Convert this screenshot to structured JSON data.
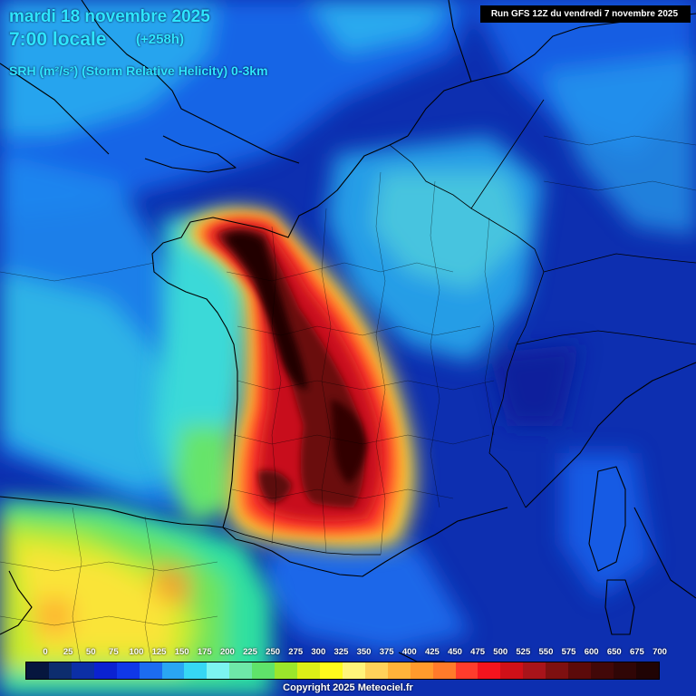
{
  "header": {
    "date": "mardi 18 novembre 2025",
    "hour": "7:00 locale",
    "lead": "(+258h)",
    "parameter": "SRH (m²/s²) (Storm Relative Helicity) 0-3km",
    "run": "Run GFS 12Z du vendredi 7 novembre 2025"
  },
  "legend": {
    "labels": [
      "0",
      "25",
      "50",
      "75",
      "100",
      "125",
      "150",
      "175",
      "200",
      "225",
      "250",
      "275",
      "300",
      "325",
      "350",
      "375",
      "400",
      "425",
      "450",
      "475",
      "500",
      "525",
      "550",
      "575",
      "600",
      "650",
      "675",
      "700"
    ],
    "colors": [
      "#06163e",
      "#0d2d6e",
      "#0c2fa6",
      "#0b22d1",
      "#1038e8",
      "#1c6cf0",
      "#2aa6f2",
      "#36d7f4",
      "#7cf4f0",
      "#6ee8a8",
      "#5fe36a",
      "#9be62b",
      "#dcee17",
      "#fffb1c",
      "#fff47a",
      "#ffd25a",
      "#ffb33a",
      "#ff9a2c",
      "#ff7a2a",
      "#ff3c2c",
      "#f4141e",
      "#cf1018",
      "#a8141a",
      "#7e1010",
      "#5c0a0a",
      "#420808",
      "#300606",
      "#200404"
    ]
  },
  "copyright": "Copyright 2025 Meteociel.fr"
}
